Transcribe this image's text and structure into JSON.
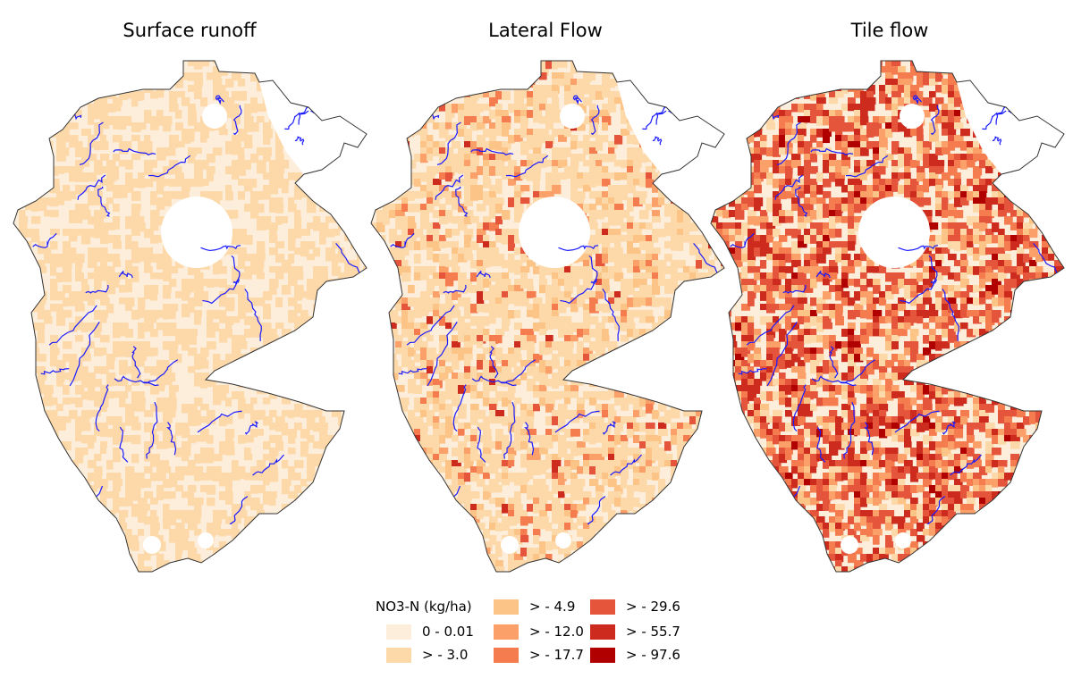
{
  "panels": [
    {
      "title": "Surface runoff"
    },
    {
      "title": "Lateral Flow"
    },
    {
      "title": "Tile flow"
    }
  ],
  "legend": {
    "title": "NO3-N (kg/ha)",
    "classes": [
      {
        "label": "0 - 0.01",
        "color": "#fdeedc"
      },
      {
        "label": "> - 3.0",
        "color": "#fdd9aa"
      },
      {
        "label": "> - 4.9",
        "color": "#fdc487"
      },
      {
        "label": "> - 12.0",
        "color": "#fca06a"
      },
      {
        "label": "> - 17.7",
        "color": "#f47c4f"
      },
      {
        "label": "> - 29.6",
        "color": "#e5553b"
      },
      {
        "label": "> - 55.7",
        "color": "#cc2b1e"
      },
      {
        "label": "> - 97.6",
        "color": "#b00000"
      }
    ]
  },
  "colors": {
    "river": "#1a1aff",
    "boundary": "#333333"
  }
}
